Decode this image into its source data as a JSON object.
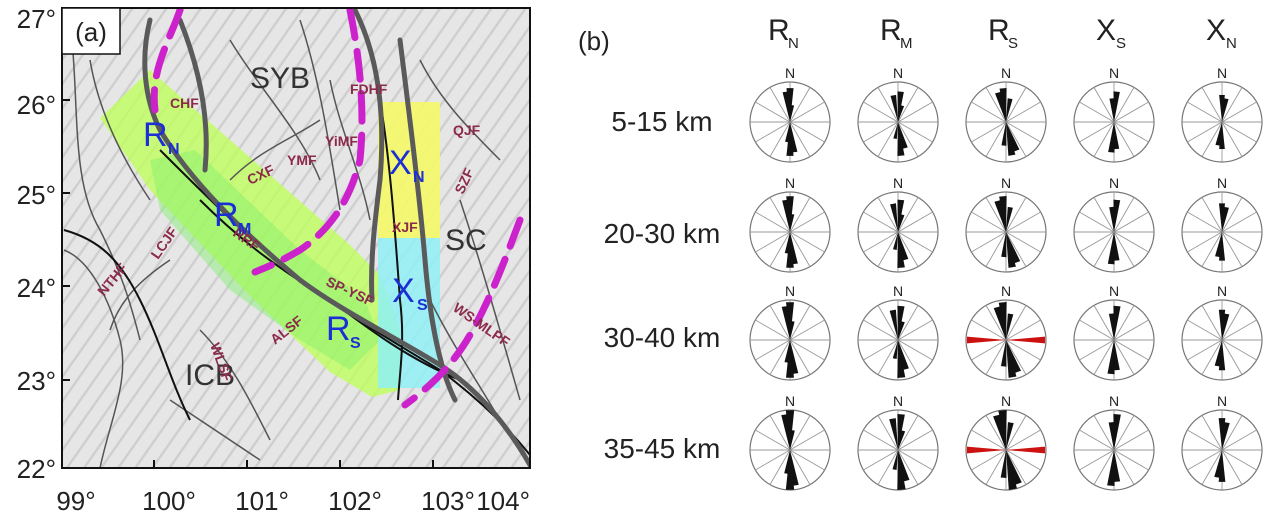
{
  "panel_a": {
    "label": "(a)",
    "y_ticks": [
      "27°",
      "26°",
      "25°",
      "24°",
      "23°",
      "22°"
    ],
    "x_ticks": [
      "99°",
      "100°",
      "101°",
      "102°",
      "103°",
      "104°"
    ],
    "regions": [
      "SYB",
      "SC",
      "ICB"
    ],
    "faults": [
      "CHF",
      "CXF",
      "YMF",
      "YiMF",
      "FDHF",
      "QJF",
      "SZF",
      "XJF",
      "LCJF",
      "RRF",
      "NTHF",
      "WLSF",
      "ALSF",
      "SP-YSF",
      "WS-MLPF"
    ],
    "blocks": [
      {
        "main": "R",
        "sub": "N"
      },
      {
        "main": "R",
        "sub": "M"
      },
      {
        "main": "R",
        "sub": "S"
      },
      {
        "main": "X",
        "sub": "N"
      },
      {
        "main": "X",
        "sub": "S"
      }
    ],
    "colors": {
      "green_zone": "#bfff5a",
      "yellow_zone": "#f4f86a",
      "cyan_zone": "#8ff0f4",
      "boundary": "#cc22cc",
      "fault_line": "#555555"
    }
  },
  "panel_b": {
    "label": "(b)",
    "columns": [
      {
        "main": "R",
        "sub": "N"
      },
      {
        "main": "R",
        "sub": "M"
      },
      {
        "main": "R",
        "sub": "S"
      },
      {
        "main": "X",
        "sub": "S"
      },
      {
        "main": "X",
        "sub": "N"
      }
    ],
    "rows": [
      "5-15 km",
      "20-30 km",
      "30-40 km",
      "35-45 km"
    ],
    "north_label": "N",
    "highlight_color": "#cc1111"
  }
}
